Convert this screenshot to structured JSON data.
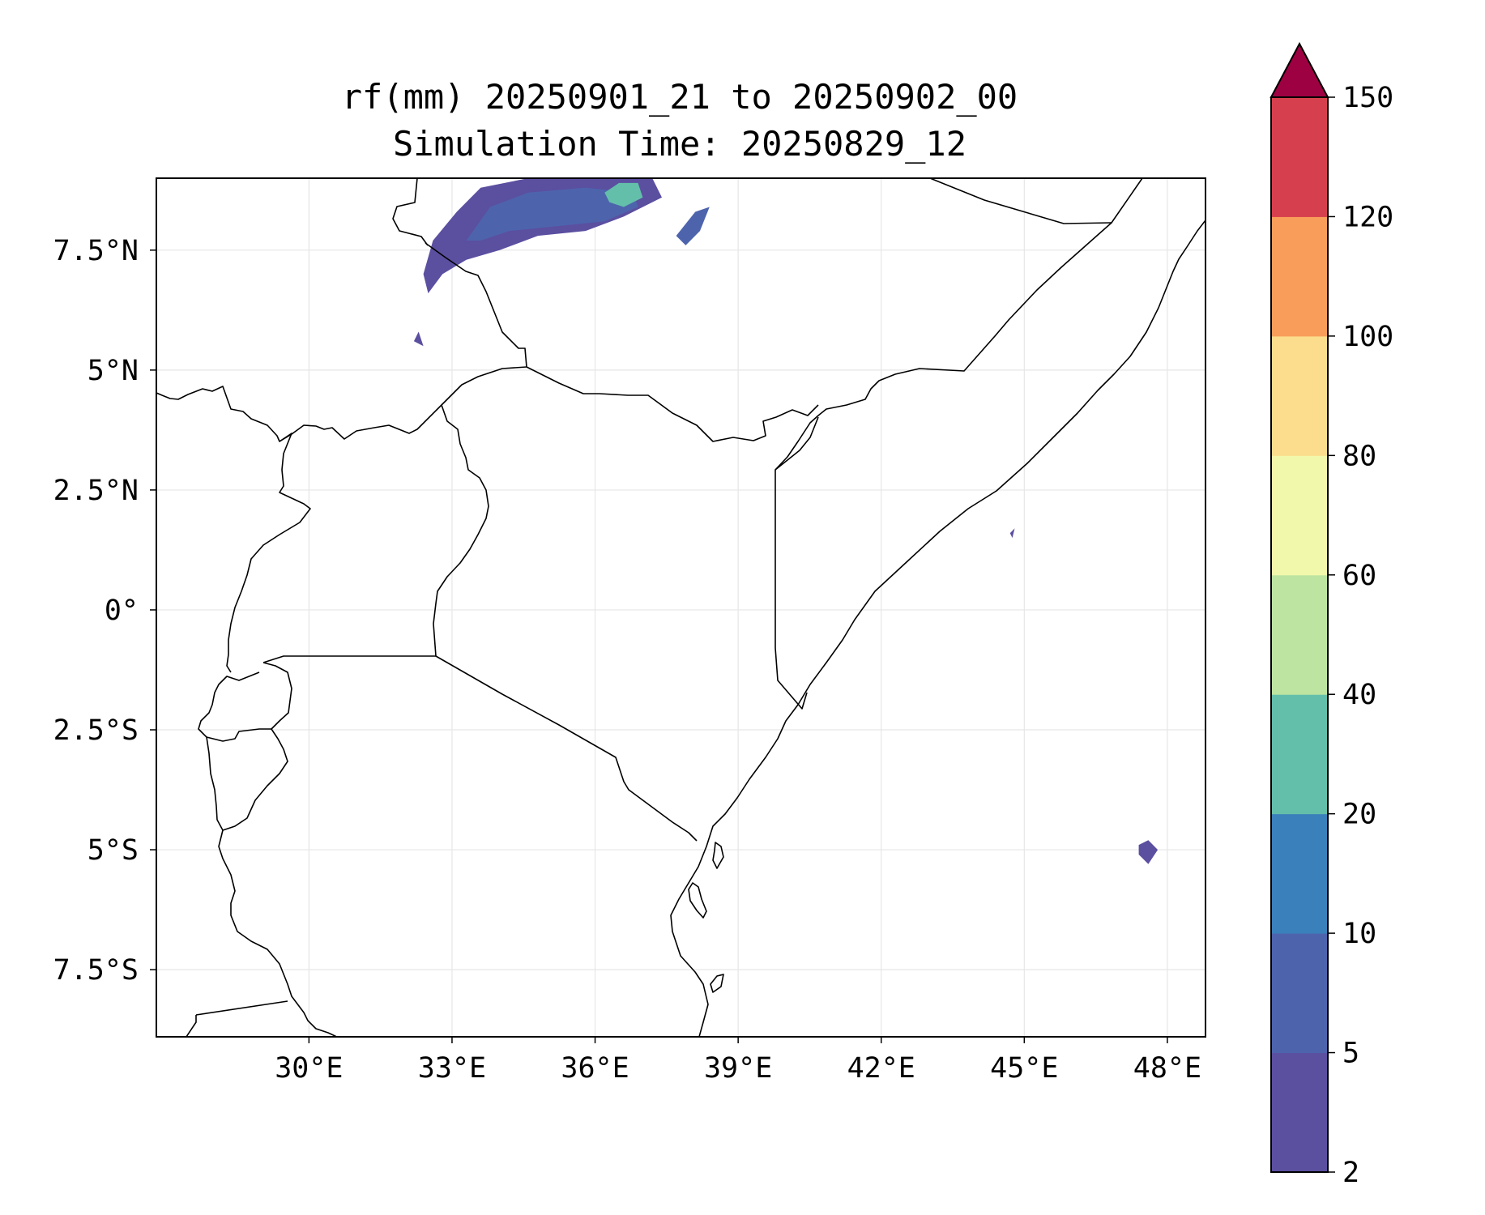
{
  "title": {
    "line1": "rf(mm) 20250901_21 to 20250902_00",
    "line2": "Simulation Time: 20250829_12"
  },
  "map": {
    "lon_range": [
      26.8,
      48.8
    ],
    "lat_range": [
      -8.9,
      9.0
    ],
    "xticks": [
      {
        "lon": 30,
        "label": "30°E"
      },
      {
        "lon": 33,
        "label": "33°E"
      },
      {
        "lon": 36,
        "label": "36°E"
      },
      {
        "lon": 39,
        "label": "39°E"
      },
      {
        "lon": 42,
        "label": "42°E"
      },
      {
        "lon": 45,
        "label": "45°E"
      },
      {
        "lon": 48,
        "label": "48°E"
      }
    ],
    "yticks": [
      {
        "lat": 7.5,
        "label": "7.5°N"
      },
      {
        "lat": 5,
        "label": "5°N"
      },
      {
        "lat": 2.5,
        "label": "2.5°N"
      },
      {
        "lat": 0,
        "label": "0°"
      },
      {
        "lat": -2.5,
        "label": "2.5°S"
      },
      {
        "lat": -5,
        "label": "5°S"
      },
      {
        "lat": -7.5,
        "label": "7.5°S"
      }
    ],
    "gridlines": true
  },
  "colorbar": {
    "levels": [
      "2",
      "5",
      "10",
      "20",
      "40",
      "60",
      "80",
      "100",
      "120",
      "150"
    ],
    "colors": [
      "#5b4fa0",
      "#4d64ad",
      "#3a80bb",
      "#63bfaa",
      "#bde4a0",
      "#f2f8ab",
      "#fbdd8d",
      "#f89d5a",
      "#d6404e"
    ],
    "extend_color": "#9e0142",
    "extend": "max"
  },
  "precip_areas": [
    {
      "name": "north-cluster-main",
      "color": "#5b4fa0",
      "pts": [
        [
          32.4,
          7.0
        ],
        [
          32.6,
          7.7
        ],
        [
          33.1,
          8.3
        ],
        [
          33.6,
          8.8
        ],
        [
          34.6,
          9.0
        ],
        [
          36.0,
          9.0
        ],
        [
          37.2,
          9.0
        ],
        [
          37.4,
          8.6
        ],
        [
          36.6,
          8.2
        ],
        [
          35.8,
          7.9
        ],
        [
          34.8,
          7.8
        ],
        [
          34.0,
          7.5
        ],
        [
          33.3,
          7.3
        ],
        [
          32.8,
          7.0
        ],
        [
          32.5,
          6.6
        ]
      ]
    },
    {
      "name": "north-cluster-inner",
      "color": "#4d64ad",
      "pts": [
        [
          33.3,
          7.7
        ],
        [
          33.8,
          8.4
        ],
        [
          34.6,
          8.7
        ],
        [
          35.8,
          8.8
        ],
        [
          36.8,
          8.7
        ],
        [
          36.9,
          8.4
        ],
        [
          36.2,
          8.1
        ],
        [
          35.2,
          8.0
        ],
        [
          34.2,
          7.9
        ],
        [
          33.6,
          7.7
        ]
      ]
    },
    {
      "name": "north-cluster-core",
      "color": "#63bfaa",
      "pts": [
        [
          36.2,
          8.7
        ],
        [
          36.5,
          8.9
        ],
        [
          36.9,
          8.9
        ],
        [
          37.0,
          8.6
        ],
        [
          36.6,
          8.4
        ],
        [
          36.3,
          8.5
        ]
      ]
    },
    {
      "name": "north-cell-east",
      "color": "#4d64ad",
      "pts": [
        [
          37.7,
          7.8
        ],
        [
          38.1,
          8.3
        ],
        [
          38.4,
          8.4
        ],
        [
          38.2,
          7.9
        ],
        [
          37.9,
          7.6
        ]
      ]
    },
    {
      "name": "small-cell-1",
      "color": "#5b4fa0",
      "pts": [
        [
          32.2,
          5.6
        ],
        [
          32.3,
          5.8
        ],
        [
          32.4,
          5.5
        ]
      ]
    },
    {
      "name": "somali-cell",
      "color": "#5b4fa0",
      "pts": [
        [
          44.7,
          1.6
        ],
        [
          44.8,
          1.7
        ],
        [
          44.75,
          1.5
        ]
      ]
    },
    {
      "name": "indian-ocean-cells",
      "color": "#5b4fa0",
      "pts": [
        [
          47.4,
          -4.9
        ],
        [
          47.6,
          -4.8
        ],
        [
          47.8,
          -5.0
        ],
        [
          47.6,
          -5.3
        ],
        [
          47.4,
          -5.1
        ]
      ]
    }
  ]
}
